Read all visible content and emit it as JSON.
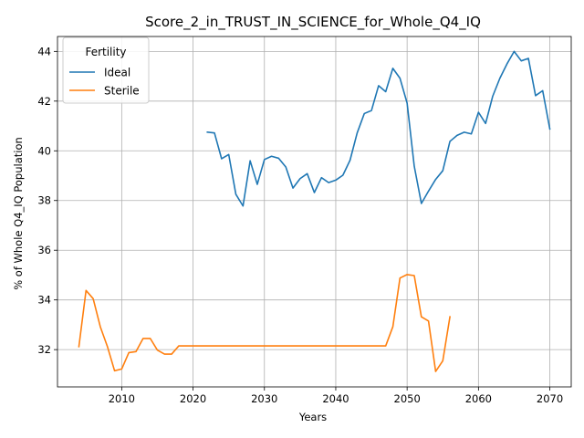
{
  "chart_data": {
    "type": "line",
    "title": "Score_2_in_TRUST_IN_SCIENCE_for_Whole_Q4_IQ",
    "xlabel": "Years",
    "ylabel": "% of Whole Q4_IQ Population",
    "xlim": [
      2001,
      2073
    ],
    "ylim": [
      30.5,
      44.6
    ],
    "xticks": [
      2010,
      2020,
      2030,
      2040,
      2050,
      2060,
      2070
    ],
    "yticks": [
      32,
      34,
      36,
      38,
      40,
      42,
      44
    ],
    "grid": true,
    "legend": {
      "title": "Fertility",
      "placement": "top-left"
    },
    "series": [
      {
        "name": "Ideal",
        "color": "#1f77b4",
        "x": [
          2022,
          2023,
          2024,
          2025,
          2026,
          2027,
          2028,
          2029,
          2030,
          2031,
          2032,
          2033,
          2034,
          2035,
          2036,
          2037,
          2038,
          2039,
          2040,
          2041,
          2042,
          2043,
          2044,
          2045,
          2046,
          2047,
          2048,
          2049,
          2050,
          2051,
          2052,
          2053,
          2054,
          2055,
          2056,
          2057,
          2058,
          2059,
          2060,
          2061,
          2062,
          2063,
          2064,
          2065,
          2066,
          2067,
          2068,
          2069,
          2070
        ],
        "values": [
          40.75,
          40.72,
          39.68,
          39.85,
          38.25,
          37.78,
          39.6,
          38.65,
          39.65,
          39.78,
          39.7,
          39.35,
          38.5,
          38.88,
          39.08,
          38.32,
          38.92,
          38.72,
          38.82,
          39.02,
          39.62,
          40.72,
          41.5,
          41.62,
          42.62,
          42.38,
          43.32,
          42.92,
          41.92,
          39.38,
          37.88,
          38.38,
          38.85,
          39.2,
          40.38,
          40.62,
          40.75,
          40.68,
          41.55,
          41.1,
          42.2,
          42.92,
          43.5,
          44.0,
          43.62,
          43.72,
          42.22,
          42.42,
          40.88
        ]
      },
      {
        "name": "Sterile",
        "color": "#ff7f0e",
        "x": [
          2004,
          2005,
          2006,
          2007,
          2008,
          2009,
          2010,
          2011,
          2012,
          2013,
          2014,
          2015,
          2016,
          2017,
          2018,
          2019,
          2020,
          2021,
          2022,
          2023,
          2024,
          2025,
          2026,
          2027,
          2028,
          2029,
          2030,
          2031,
          2032,
          2033,
          2034,
          2035,
          2036,
          2037,
          2038,
          2039,
          2040,
          2041,
          2042,
          2043,
          2044,
          2045,
          2046,
          2047,
          2048,
          2049,
          2050,
          2051,
          2052,
          2053,
          2054,
          2055,
          2056
        ],
        "values": [
          32.12,
          34.38,
          34.05,
          32.92,
          32.12,
          31.15,
          31.22,
          31.88,
          31.92,
          32.45,
          32.45,
          31.98,
          31.82,
          31.82,
          32.15,
          32.15,
          32.15,
          32.15,
          32.15,
          32.15,
          32.15,
          32.15,
          32.15,
          32.15,
          32.15,
          32.15,
          32.15,
          32.15,
          32.15,
          32.15,
          32.15,
          32.15,
          32.15,
          32.15,
          32.15,
          32.15,
          32.15,
          32.15,
          32.15,
          32.15,
          32.15,
          32.15,
          32.15,
          32.15,
          32.92,
          34.88,
          35.02,
          34.98,
          33.32,
          33.15,
          31.12,
          31.55,
          33.32
        ]
      }
    ]
  }
}
